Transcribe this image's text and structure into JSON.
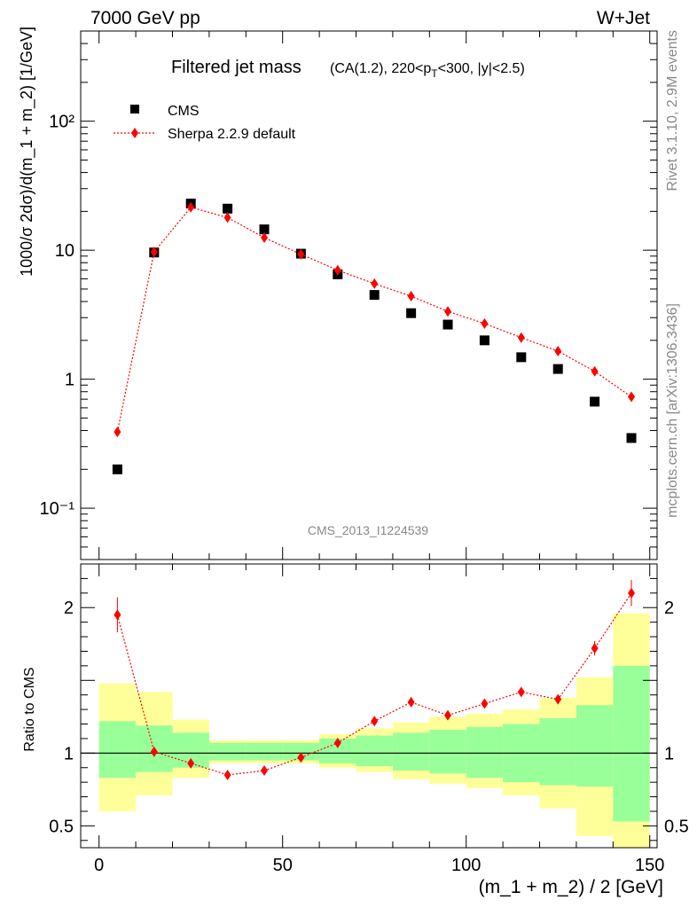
{
  "header": {
    "left": "7000 GeV pp",
    "right": "W+Jet"
  },
  "side_labels": {
    "rivet": "Rivet 3.1.10,  2.9M events",
    "mcplots": "mcplots.cern.ch [arXiv:1306.3436]"
  },
  "chart_data": [
    {
      "type": "scatter",
      "title": "Filtered jet mass",
      "subtitle_parts": {
        "pre": "(CA(1.2), 220<p",
        "sub": "T",
        "post": "<300, |y|<2.5)"
      },
      "ylabel": "1000/σ 2dσ)/d(m_1 + m_2) [1/GeV]",
      "yscale": "log",
      "ylim": [
        0.04,
        500
      ],
      "xlim": [
        -5,
        152
      ],
      "y_tick_labels": [
        "10⁻¹",
        "1",
        "10",
        "10²"
      ],
      "watermark": "CMS_2013_I1224539",
      "legend_position": "top-left",
      "x": [
        5,
        15,
        25,
        35,
        45,
        55,
        65,
        75,
        85,
        95,
        105,
        115,
        125,
        135,
        145
      ],
      "series": [
        {
          "name": "CMS",
          "marker": "square",
          "color": "#000000",
          "values": [
            0.2,
            9.6,
            23.0,
            21.0,
            14.5,
            9.4,
            6.5,
            4.5,
            3.25,
            2.65,
            2.0,
            1.48,
            1.2,
            0.67,
            0.35
          ]
        },
        {
          "name": "Sherpa 2.2.9 default",
          "marker": "diamond",
          "line": "dotted",
          "color": "#ff0000",
          "values": [
            0.39,
            9.7,
            21.5,
            17.9,
            12.5,
            9.3,
            7.0,
            5.5,
            4.4,
            3.35,
            2.7,
            2.1,
            1.65,
            1.15,
            0.73
          ]
        }
      ]
    },
    {
      "type": "scatter",
      "ylabel": "Ratio to CMS",
      "xlabel": "(m_1 + m_2) / 2 [GeV]",
      "ylim": [
        0.35,
        2.3
      ],
      "xlim": [
        -5,
        152
      ],
      "x_tick_labels": [
        "0",
        "50",
        "100",
        "150"
      ],
      "y_tick_labels": [
        "0.5",
        "1",
        "2"
      ],
      "reference_line": 1,
      "bands": {
        "bins": [
          [
            0,
            10
          ],
          [
            10,
            20
          ],
          [
            20,
            30
          ],
          [
            30,
            40
          ],
          [
            40,
            50
          ],
          [
            50,
            60
          ],
          [
            60,
            70
          ],
          [
            70,
            80
          ],
          [
            80,
            90
          ],
          [
            90,
            100
          ],
          [
            100,
            110
          ],
          [
            110,
            120
          ],
          [
            120,
            130
          ],
          [
            130,
            140
          ],
          [
            140,
            150
          ]
        ],
        "stat_color": "#99ff99",
        "total_color": "#ffff99",
        "inner_low": [
          0.83,
          0.87,
          0.9,
          0.95,
          0.95,
          0.95,
          0.93,
          0.91,
          0.88,
          0.86,
          0.83,
          0.8,
          0.78,
          0.77,
          0.53
        ],
        "inner_high": [
          1.22,
          1.19,
          1.14,
          1.07,
          1.07,
          1.07,
          1.1,
          1.12,
          1.14,
          1.16,
          1.18,
          1.2,
          1.24,
          1.33,
          1.6
        ],
        "outer_low": [
          0.6,
          0.71,
          0.83,
          0.93,
          0.93,
          0.93,
          0.9,
          0.87,
          0.82,
          0.79,
          0.76,
          0.71,
          0.62,
          0.43,
          0.35
        ],
        "outer_high": [
          1.48,
          1.42,
          1.23,
          1.09,
          1.09,
          1.09,
          1.13,
          1.17,
          1.21,
          1.25,
          1.27,
          1.3,
          1.38,
          1.52,
          1.96
        ]
      },
      "series": [
        {
          "name": "Sherpa 2.2.9 default",
          "marker": "diamond",
          "line": "dotted",
          "color": "#ff0000",
          "values": [
            1.95,
            1.01,
            0.93,
            0.85,
            0.88,
            0.97,
            1.07,
            1.22,
            1.35,
            1.26,
            1.34,
            1.42,
            1.37,
            1.72,
            2.1
          ],
          "errors": [
            0.12,
            0.01,
            0.01,
            0.01,
            0.01,
            0.01,
            0.01,
            0.01,
            0.01,
            0.01,
            0.01,
            0.01,
            0.03,
            0.05,
            0.09
          ]
        }
      ]
    }
  ]
}
